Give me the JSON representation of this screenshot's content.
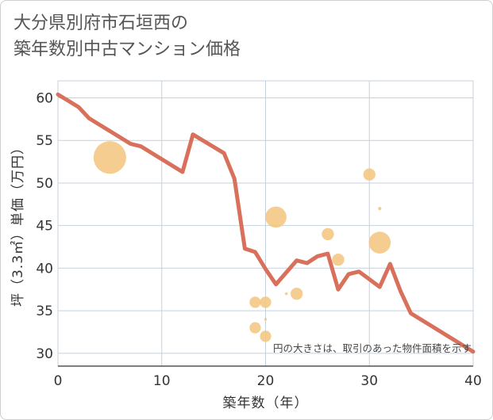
{
  "title_lines": [
    "大分県別府市石垣西の",
    "築年数別中古マンション価格"
  ],
  "chart_data": {
    "type": "scatter+line",
    "title": "大分県別府市石垣西の築年数別中古マンション価格",
    "xlabel": "築年数（年）",
    "ylabel": "坪（3.3㎡）単価（万円）",
    "xlim": [
      0,
      40
    ],
    "ylim": [
      28.5,
      62
    ],
    "xticks": [
      0,
      10,
      20,
      30,
      40
    ],
    "yticks": [
      30,
      35,
      40,
      45,
      50,
      55,
      60
    ],
    "grid": true,
    "note": "円の大きさは、取引のあった物件面積を示す",
    "line_color": "#d9705b",
    "bubble_color": "#f4c47e",
    "line": {
      "x": [
        0,
        2,
        3,
        5,
        7,
        8,
        12,
        13,
        16,
        17,
        18,
        19,
        20,
        21,
        23,
        24,
        25,
        26,
        27,
        28,
        29,
        30,
        31,
        32,
        33,
        34,
        36,
        38,
        40
      ],
      "y": [
        60.4,
        58.9,
        57.6,
        56.1,
        54.6,
        54.3,
        51.3,
        55.7,
        53.5,
        50.5,
        42.3,
        41.9,
        39.9,
        38.1,
        40.9,
        40.6,
        41.4,
        41.7,
        37.5,
        39.3,
        39.6,
        38.7,
        37.8,
        40.5,
        37.3,
        34.7,
        33.2,
        31.7,
        30.2
      ]
    },
    "points": [
      {
        "x": 5,
        "y": 53,
        "size": 10
      },
      {
        "x": 19,
        "y": 36,
        "size": 1.2
      },
      {
        "x": 19,
        "y": 33,
        "size": 1.2
      },
      {
        "x": 20,
        "y": 36,
        "size": 1.2
      },
      {
        "x": 20,
        "y": 34,
        "size": 0.05
      },
      {
        "x": 20,
        "y": 32,
        "size": 1.2
      },
      {
        "x": 21,
        "y": 46,
        "size": 4.2
      },
      {
        "x": 22,
        "y": 37,
        "size": 0.05
      },
      {
        "x": 23,
        "y": 37,
        "size": 1.4
      },
      {
        "x": 26,
        "y": 44,
        "size": 1.4
      },
      {
        "x": 27,
        "y": 41,
        "size": 1.4
      },
      {
        "x": 30,
        "y": 51,
        "size": 1.4
      },
      {
        "x": 31,
        "y": 47,
        "size": 0.1
      },
      {
        "x": 31,
        "y": 43,
        "size": 4.5
      }
    ]
  }
}
